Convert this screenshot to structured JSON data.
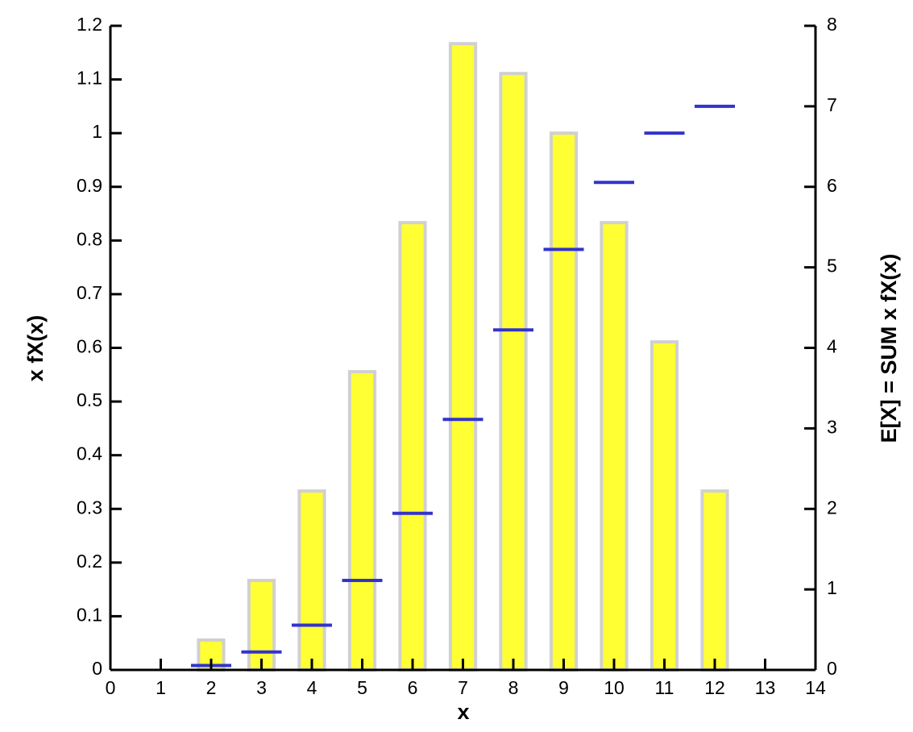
{
  "chart_data": {
    "type": "bar",
    "x_label": "x",
    "y_label": "x fX(x)",
    "y2_label": "E[X] = SUM x fX(x)",
    "x": [
      2,
      3,
      4,
      5,
      6,
      7,
      8,
      9,
      10,
      11,
      12
    ],
    "series": [
      {
        "type": "bar",
        "color": "#ffff33",
        "edge_color": "#d0d0d0",
        "values": [
          0.0556,
          0.1667,
          0.3333,
          0.5556,
          0.8333,
          1.1667,
          1.1111,
          1.0,
          0.8333,
          0.6111,
          0.3333
        ]
      },
      {
        "type": "dash",
        "axis": "y2",
        "color": "#3333cc",
        "values": [
          0.0556,
          0.2222,
          0.5556,
          1.1111,
          1.9444,
          3.1111,
          4.2222,
          5.2222,
          6.0556,
          6.6667,
          7.0
        ]
      }
    ],
    "xlim": [
      0,
      14
    ],
    "xticks": [
      0,
      1,
      2,
      3,
      4,
      5,
      6,
      7,
      8,
      9,
      10,
      11,
      12,
      13,
      14
    ],
    "ylim": [
      0,
      1.2
    ],
    "yticks": [
      0,
      0.1,
      0.2,
      0.3,
      0.4,
      0.5,
      0.6,
      0.7,
      0.8,
      0.9,
      1,
      1.1,
      1.2
    ],
    "y2lim": [
      0,
      8
    ],
    "y2ticks": [
      0,
      1,
      2,
      3,
      4,
      5,
      6,
      7,
      8
    ],
    "grid": false
  }
}
